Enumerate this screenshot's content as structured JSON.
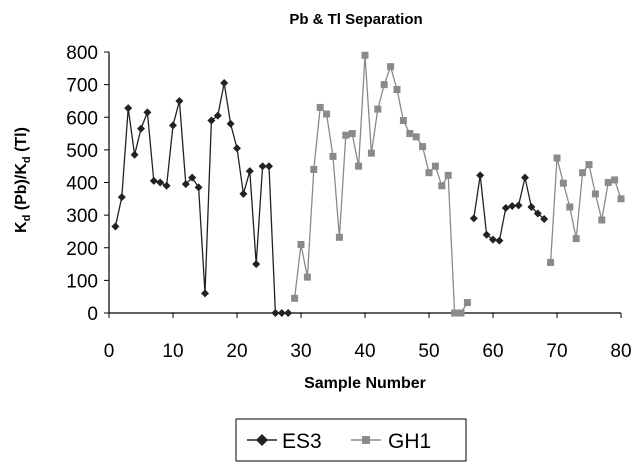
{
  "chart_data": {
    "type": "line",
    "title": "Pb & Tl Separation",
    "xlabel": "Sample Number",
    "ylabel_parts": {
      "k1": "K",
      "sub1": "d",
      "mid": " (Pb)/K",
      "sub2": "d",
      "end": " (Tl)"
    },
    "xlim": [
      0,
      80
    ],
    "ylim": [
      0,
      800
    ],
    "x_ticks": [
      0,
      10,
      20,
      30,
      40,
      50,
      60,
      70,
      80
    ],
    "y_ticks": [
      0,
      100,
      200,
      300,
      400,
      500,
      600,
      700,
      800
    ],
    "grid": false,
    "legend_position": "bottom-center",
    "series": [
      {
        "name": "ES3",
        "color": "#222222",
        "marker": "diamond",
        "segments": [
          [
            [
              1,
              265
            ],
            [
              2,
              355
            ],
            [
              3,
              628
            ],
            [
              4,
              485
            ],
            [
              5,
              565
            ],
            [
              6,
              615
            ],
            [
              7,
              405
            ],
            [
              8,
              400
            ],
            [
              9,
              390
            ],
            [
              10,
              575
            ],
            [
              11,
              650
            ],
            [
              12,
              395
            ],
            [
              13,
              415
            ],
            [
              14,
              385
            ],
            [
              15,
              60
            ],
            [
              16,
              590
            ],
            [
              17,
              605
            ],
            [
              18,
              705
            ],
            [
              19,
              580
            ],
            [
              20,
              505
            ],
            [
              21,
              365
            ],
            [
              22,
              435
            ],
            [
              23,
              150
            ],
            [
              24,
              450
            ],
            [
              25,
              450
            ],
            [
              26,
              0
            ],
            [
              27,
              0
            ],
            [
              28,
              0
            ]
          ],
          [
            [
              57,
              290
            ],
            [
              58,
              422
            ],
            [
              59,
              240
            ],
            [
              60,
              225
            ],
            [
              61,
              222
            ],
            [
              62,
              322
            ],
            [
              63,
              328
            ],
            [
              64,
              330
            ],
            [
              65,
              415
            ],
            [
              66,
              325
            ],
            [
              67,
              305
            ],
            [
              68,
              288
            ]
          ]
        ]
      },
      {
        "name": "GH1",
        "color": "#8a8a8a",
        "marker": "square",
        "segments": [
          [
            [
              29,
              45
            ],
            [
              30,
              210
            ],
            [
              31,
              110
            ],
            [
              32,
              440
            ],
            [
              33,
              630
            ],
            [
              34,
              610
            ],
            [
              35,
              480
            ],
            [
              36,
              232
            ],
            [
              37,
              545
            ],
            [
              38,
              550
            ],
            [
              39,
              450
            ],
            [
              40,
              790
            ],
            [
              41,
              490
            ],
            [
              42,
              625
            ],
            [
              43,
              700
            ],
            [
              44,
              755
            ],
            [
              45,
              685
            ],
            [
              46,
              590
            ],
            [
              47,
              550
            ],
            [
              48,
              540
            ],
            [
              49,
              510
            ],
            [
              50,
              430
            ],
            [
              51,
              450
            ],
            [
              52,
              390
            ],
            [
              53,
              422
            ],
            [
              54,
              0
            ],
            [
              55,
              0
            ],
            [
              56,
              32
            ]
          ],
          [
            [
              69,
              155
            ],
            [
              70,
              475
            ],
            [
              71,
              398
            ],
            [
              72,
              325
            ],
            [
              73,
              228
            ],
            [
              74,
              430
            ],
            [
              75,
              455
            ],
            [
              76,
              365
            ],
            [
              77,
              285
            ],
            [
              78,
              400
            ],
            [
              79,
              408
            ],
            [
              80,
              350
            ]
          ]
        ]
      }
    ]
  }
}
